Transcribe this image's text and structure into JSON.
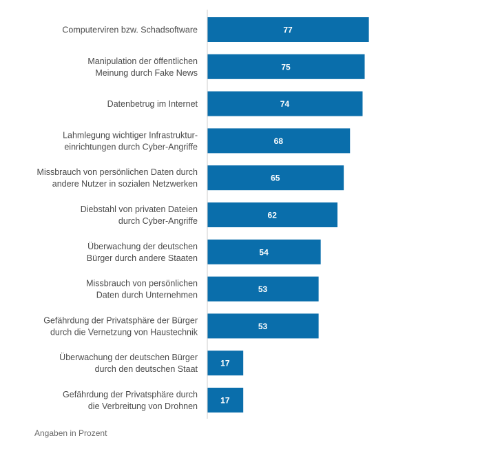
{
  "chart_data": {
    "type": "bar",
    "orientation": "horizontal",
    "bar_color": "#0a6eab",
    "value_label_color": "#ffffff",
    "axis_line_color": "#cccccc",
    "xlim": [
      0,
      100
    ],
    "grid": false,
    "categories": [
      [
        "Computerviren bzw. Schadsoftware"
      ],
      [
        "Manipulation der öffentlichen",
        "Meinung durch Fake News"
      ],
      [
        "Datenbetrug im Internet"
      ],
      [
        "Lahmlegung wichtiger Infrastruktur-",
        "einrichtungen durch Cyber-Angriffe"
      ],
      [
        "Missbrauch von persönlichen Daten durch",
        "andere Nutzer in sozialen Netzwerken"
      ],
      [
        "Diebstahl von privaten Dateien",
        "durch Cyber-Angriffe"
      ],
      [
        "Überwachung der deutschen",
        "Bürger durch andere Staaten"
      ],
      [
        "Missbrauch von persönlichen",
        "Daten durch Unternehmen"
      ],
      [
        "Gefährdung der Privatsphäre der Bürger",
        "durch die Vernetzung von Haustechnik"
      ],
      [
        "Überwachung der deutschen Bürger",
        "durch den deutschen Staat"
      ],
      [
        "Gefährdung der Privatsphäre durch",
        "die Verbreitung von Drohnen"
      ]
    ],
    "values": [
      77,
      75,
      74,
      68,
      65,
      62,
      54,
      53,
      53,
      17,
      17
    ]
  },
  "footnote": "Angaben in Prozent"
}
